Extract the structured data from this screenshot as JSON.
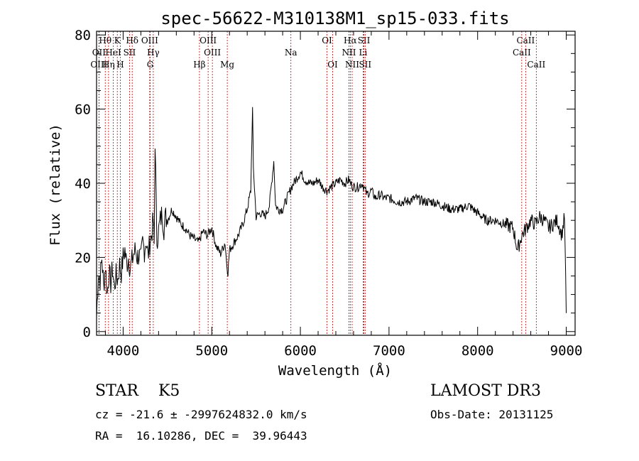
{
  "chart_data": {
    "type": "line",
    "title": "spec-56622-M310138M1_sp15-033.fits",
    "xlabel": "Wavelength (Å)",
    "ylabel": "Flux (relative)",
    "xlim": [
      3700,
      9100
    ],
    "ylim": [
      -1,
      81
    ],
    "xticks": [
      4000,
      5000,
      6000,
      7000,
      8000,
      9000
    ],
    "yticks": [
      0,
      20,
      40,
      60,
      80
    ],
    "grid": false,
    "series": [
      {
        "values_x": [
          3700,
          3720,
          3740,
          3760,
          3780,
          3800,
          3820,
          3840,
          3860,
          3880,
          3900,
          3920,
          3940,
          3960,
          3980,
          4000,
          4020,
          4040,
          4060,
          4080,
          4100,
          4120,
          4140,
          4160,
          4180,
          4200,
          4220,
          4240,
          4260,
          4280,
          4300,
          4320,
          4340,
          4350,
          4360,
          4380,
          4400,
          4420,
          4440,
          4460,
          4480,
          4500,
          4550,
          4600,
          4650,
          4700,
          4750,
          4800,
          4850,
          4900,
          4950,
          5000,
          5050,
          5100,
          5150,
          5170,
          5183,
          5200,
          5250,
          5300,
          5350,
          5400,
          5440,
          5460,
          5470,
          5500,
          5550,
          5600,
          5650,
          5700,
          5720,
          5750,
          5800,
          5850,
          5900,
          5950,
          6000,
          6050,
          6100,
          6150,
          6200,
          6250,
          6300,
          6350,
          6400,
          6450,
          6500,
          6550,
          6563,
          6600,
          6650,
          6700,
          6750,
          6800,
          6850,
          6900,
          6950,
          7000,
          7100,
          7200,
          7300,
          7400,
          7500,
          7600,
          7700,
          7800,
          7900,
          8000,
          8100,
          8200,
          8300,
          8400,
          8450,
          8500,
          8550,
          8600,
          8650,
          8700,
          8750,
          8800,
          8850,
          8900,
          8950,
          8980,
          9000
        ],
        "values_y": [
          4,
          16,
          14,
          20,
          12,
          18,
          10,
          16,
          13,
          17,
          12,
          15,
          14,
          18,
          16,
          20,
          22,
          18,
          20,
          17,
          19,
          21,
          22,
          20,
          21,
          19,
          24,
          22,
          25,
          20,
          24,
          26,
          30,
          23,
          52,
          25,
          27,
          30,
          32,
          28,
          31,
          30,
          33,
          31,
          29,
          28,
          26,
          25,
          24,
          27,
          26,
          28,
          23,
          21,
          24,
          18,
          16,
          22,
          24,
          26,
          29,
          33,
          38,
          60,
          44,
          31,
          32,
          31,
          34,
          46,
          34,
          33,
          33,
          36,
          39,
          41,
          43,
          41,
          40,
          40,
          41,
          39,
          38,
          39,
          40,
          41,
          40,
          41,
          40,
          39,
          39,
          40,
          37,
          38,
          36,
          37,
          36,
          36,
          35,
          35,
          36,
          35,
          35,
          34,
          33,
          33,
          34,
          32,
          30,
          30,
          29,
          28,
          22,
          26,
          28,
          30,
          29,
          31,
          30,
          28,
          29,
          30,
          26,
          31,
          5
        ]
      }
    ],
    "line_markers": [
      {
        "label": "Hθ",
        "wavelength": 3798,
        "row": 0
      },
      {
        "label": "OII",
        "wavelength": 3727,
        "row": 1
      },
      {
        "label": "OIII",
        "wavelength": 3727,
        "row": 2
      },
      {
        "label": "Hη",
        "wavelength": 3835,
        "row": 2
      },
      {
        "label": "HeI",
        "wavelength": 3889,
        "row": 1
      },
      {
        "label": "K",
        "wavelength": 3934,
        "row": 0
      },
      {
        "label": "H",
        "wavelength": 3968,
        "row": 2
      },
      {
        "label": "SII",
        "wavelength": 4072,
        "row": 1
      },
      {
        "label": "Hδ",
        "wavelength": 4102,
        "row": 0
      },
      {
        "label": "OIII",
        "wavelength": 4300,
        "row": 0
      },
      {
        "label": "Hγ",
        "wavelength": 4340,
        "row": 1
      },
      {
        "label": "G",
        "wavelength": 4305,
        "row": 2
      },
      {
        "label": "Hβ",
        "wavelength": 4861,
        "row": 2
      },
      {
        "label": "OIII",
        "wavelength": 4959,
        "row": 0
      },
      {
        "label": "OIII",
        "wavelength": 5007,
        "row": 1
      },
      {
        "label": "Mg",
        "wavelength": 5175,
        "row": 2
      },
      {
        "label": "Na",
        "wavelength": 5893,
        "row": 1
      },
      {
        "label": "OI",
        "wavelength": 6300,
        "row": 0
      },
      {
        "label": "OI",
        "wavelength": 6364,
        "row": 2
      },
      {
        "label": "Hα",
        "wavelength": 6563,
        "row": 0
      },
      {
        "label": "NII",
        "wavelength": 6548,
        "row": 1
      },
      {
        "label": "NII",
        "wavelength": 6584,
        "row": 2
      },
      {
        "label": "SII",
        "wavelength": 6717,
        "row": 0
      },
      {
        "label": "Li",
        "wavelength": 6708,
        "row": 1
      },
      {
        "label": "SII",
        "wavelength": 6731,
        "row": 2
      },
      {
        "label": "CaII",
        "wavelength": 8542,
        "row": 0
      },
      {
        "label": "CaII",
        "wavelength": 8498,
        "row": 1
      },
      {
        "label": "CaII",
        "wavelength": 8662,
        "row": 2
      }
    ]
  },
  "info": {
    "class_text": "STAR    K5",
    "survey_text": "LAMOST DR3",
    "cz_text": "cz = -21.6 ± -2997624832.0 km/s",
    "obs_date_text": "Obs-Date: 20131125",
    "radec_text": "RA =  16.10286, DEC =  39.96443"
  },
  "colors": {
    "spectrum": "#000000",
    "line_marker": "#cc0000"
  }
}
